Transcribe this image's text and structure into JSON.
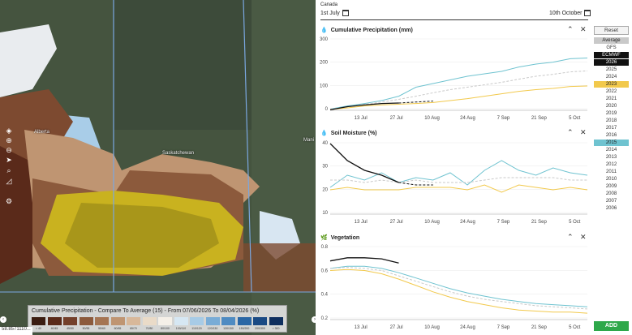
{
  "map": {
    "place_labels": [
      "Saskatchewan",
      "Alberta",
      "Mani"
    ],
    "coordinates": "58.8571110...",
    "legend": {
      "title": "Cumulative Precipitation - Compare To Average (15) - From 07/06/2026 To 08/04/2026 (%)",
      "swatches": [
        {
          "label": "< 40",
          "color": "#3b1d12"
        },
        {
          "label": "40/45",
          "color": "#5a2a1a"
        },
        {
          "label": "45/50",
          "color": "#74402b"
        },
        {
          "label": "50/55",
          "color": "#8c5a3c"
        },
        {
          "label": "55/60",
          "color": "#a57553"
        },
        {
          "label": "60/65",
          "color": "#bf9572"
        },
        {
          "label": "65/70",
          "color": "#d8b89a"
        },
        {
          "label": "70/80",
          "color": "#eadbc8"
        },
        {
          "label": "80/100",
          "color": "#f5f0e8"
        },
        {
          "label": "100/110",
          "color": "#d6e7f3"
        },
        {
          "label": "110/120",
          "color": "#a7cbe6"
        },
        {
          "label": "120/130",
          "color": "#79acd6"
        },
        {
          "label": "130/150",
          "color": "#4f8bc2"
        },
        {
          "label": "150/200",
          "color": "#2b67a5"
        },
        {
          "label": "200/300",
          "color": "#1a4a84"
        },
        {
          "label": "> 300",
          "color": "#0f2f5e"
        }
      ]
    },
    "tools": [
      "layers-icon",
      "zoom-in-icon",
      "zoom-out-icon",
      "navigate-icon",
      "search-icon",
      "measure-icon",
      "settings-icon"
    ]
  },
  "header": {
    "region": "Canada",
    "start_date": "1st July",
    "end_date": "10th October"
  },
  "years": {
    "reset_label": "Reset",
    "items": [
      "Average",
      "GFS",
      "ECMWF",
      "2026",
      "2025",
      "2024",
      "2023",
      "2022",
      "2021",
      "2020",
      "2019",
      "2018",
      "2017",
      "2016",
      "2015",
      "2014",
      "2013",
      "2012",
      "2011",
      "2010",
      "2009",
      "2008",
      "2007",
      "2006"
    ],
    "add_label": "ADD",
    "colors": {
      "Average": "#c9c9c9",
      "ECMWF": "#111111",
      "2026": "#111111",
      "2023": "#f2c94c",
      "2015": "#6fc3d0"
    }
  },
  "panels": [
    {
      "title": "Cumulative Precipitation (mm)",
      "yticks": [
        "300",
        "200",
        "100",
        "0"
      ]
    },
    {
      "title": "Soil Moisture (%)",
      "yticks": [
        "40",
        "30",
        "20",
        "10"
      ]
    },
    {
      "title": "Vegetation",
      "yticks": [
        "0.8",
        "0.6",
        "0.4",
        "0.2"
      ]
    }
  ],
  "xticks": [
    "13 Jul",
    "27 Jul",
    "10 Aug",
    "24 Aug",
    "7 Sep",
    "21 Sep",
    "5 Oct"
  ],
  "chart_data": [
    {
      "type": "line",
      "title": "Cumulative Precipitation (mm)",
      "x": [
        "1 Jul",
        "8 Jul",
        "15 Jul",
        "22 Jul",
        "29 Jul",
        "5 Aug",
        "12 Aug",
        "19 Aug",
        "26 Aug",
        "2 Sep",
        "9 Sep",
        "16 Sep",
        "23 Sep",
        "30 Sep",
        "7 Oct",
        "10 Oct"
      ],
      "ylim": [
        0,
        300
      ],
      "series": [
        {
          "name": "2015",
          "color": "#6fc3d0",
          "values": [
            5,
            18,
            28,
            40,
            58,
            95,
            110,
            125,
            140,
            150,
            160,
            178,
            190,
            198,
            212,
            215
          ]
        },
        {
          "name": "Average",
          "color": "#c9c9c9",
          "dashed": true,
          "values": [
            5,
            14,
            24,
            34,
            45,
            58,
            72,
            85,
            95,
            105,
            115,
            128,
            140,
            148,
            158,
            162
          ]
        },
        {
          "name": "2023",
          "color": "#f2c94c",
          "values": [
            3,
            10,
            18,
            22,
            25,
            28,
            32,
            40,
            48,
            58,
            68,
            78,
            85,
            90,
            98,
            100
          ]
        },
        {
          "name": "2026",
          "color": "#111111",
          "values": [
            2,
            15,
            22,
            28,
            30,
            null,
            null,
            null,
            null,
            null,
            null,
            null,
            null,
            null,
            null,
            null
          ]
        },
        {
          "name": "ECMWF",
          "color": "#111111",
          "dashed": true,
          "values": [
            null,
            null,
            null,
            null,
            30,
            34,
            38,
            null,
            null,
            null,
            null,
            null,
            null,
            null,
            null,
            null
          ]
        }
      ]
    },
    {
      "type": "line",
      "title": "Soil Moisture (%)",
      "x": [
        "1 Jul",
        "8 Jul",
        "15 Jul",
        "22 Jul",
        "29 Jul",
        "5 Aug",
        "12 Aug",
        "19 Aug",
        "26 Aug",
        "2 Sep",
        "9 Sep",
        "16 Sep",
        "23 Sep",
        "30 Sep",
        "7 Oct",
        "10 Oct"
      ],
      "ylim": [
        10,
        40
      ],
      "series": [
        {
          "name": "2015",
          "color": "#6fc3d0",
          "values": [
            21,
            26,
            24,
            27,
            23,
            25,
            24,
            27,
            22,
            28,
            32,
            28,
            26,
            29,
            27,
            26
          ]
        },
        {
          "name": "Average",
          "color": "#c9c9c9",
          "dashed": true,
          "values": [
            24,
            24,
            23,
            24,
            23,
            24,
            23,
            23,
            23,
            24,
            25,
            25,
            25,
            25,
            24,
            24
          ]
        },
        {
          "name": "2023",
          "color": "#f2c94c",
          "values": [
            20,
            21,
            20,
            20,
            20,
            21,
            21,
            21,
            20,
            22,
            19,
            22,
            21,
            20,
            21,
            20
          ]
        },
        {
          "name": "2026",
          "color": "#111111",
          "values": [
            39,
            32,
            28,
            26,
            23,
            null,
            null,
            null,
            null,
            null,
            null,
            null,
            null,
            null,
            null,
            null
          ]
        },
        {
          "name": "ECMWF",
          "color": "#111111",
          "dashed": true,
          "values": [
            null,
            null,
            null,
            null,
            23,
            22,
            22,
            null,
            null,
            null,
            null,
            null,
            null,
            null,
            null,
            null
          ]
        }
      ]
    },
    {
      "type": "line",
      "title": "Vegetation",
      "x": [
        "1 Jul",
        "8 Jul",
        "15 Jul",
        "22 Jul",
        "29 Jul",
        "5 Aug",
        "12 Aug",
        "19 Aug",
        "26 Aug",
        "2 Sep",
        "9 Sep",
        "16 Sep",
        "23 Sep",
        "30 Sep",
        "7 Oct",
        "10 Oct"
      ],
      "ylim": [
        0.2,
        0.9
      ],
      "series": [
        {
          "name": "2015",
          "color": "#6fc3d0",
          "values": [
            0.68,
            0.7,
            0.7,
            0.68,
            0.64,
            0.59,
            0.54,
            0.49,
            0.45,
            0.42,
            0.39,
            0.37,
            0.35,
            0.34,
            0.33,
            0.32
          ]
        },
        {
          "name": "Average",
          "color": "#c9c9c9",
          "dashed": true,
          "values": [
            0.68,
            0.69,
            0.68,
            0.66,
            0.61,
            0.56,
            0.51,
            0.46,
            0.42,
            0.39,
            0.37,
            0.35,
            0.33,
            0.32,
            0.31,
            0.3
          ]
        },
        {
          "name": "2023",
          "color": "#f2c94c",
          "values": [
            0.66,
            0.67,
            0.66,
            0.63,
            0.58,
            0.52,
            0.46,
            0.41,
            0.37,
            0.34,
            0.31,
            0.29,
            0.28,
            0.27,
            0.27,
            0.26
          ]
        },
        {
          "name": "2026",
          "color": "#111111",
          "values": [
            0.75,
            0.78,
            0.78,
            0.77,
            0.73,
            null,
            null,
            null,
            null,
            null,
            null,
            null,
            null,
            null,
            null,
            null
          ]
        }
      ]
    }
  ]
}
